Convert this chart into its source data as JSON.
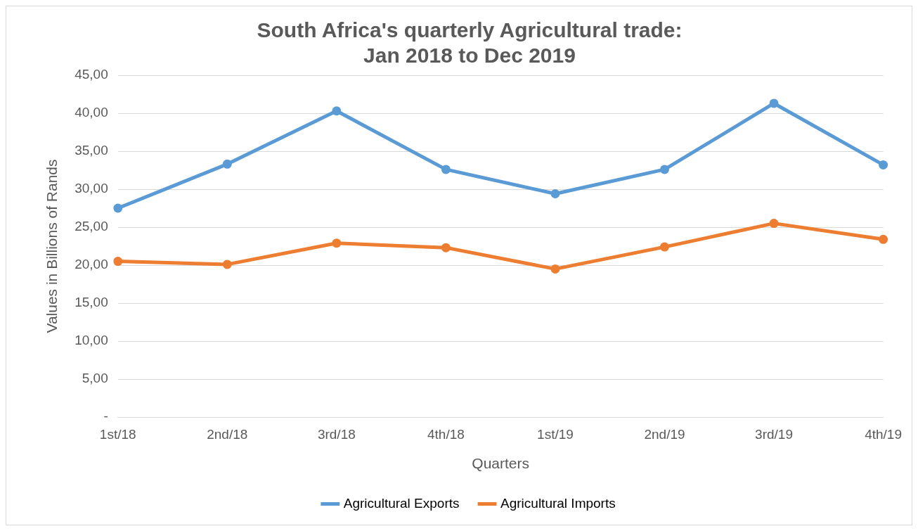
{
  "chart_data": {
    "type": "line",
    "title": [
      "South Africa's quarterly Agricultural trade:",
      "Jan 2018 to Dec 2019"
    ],
    "xlabel": "Quarters",
    "ylabel": "Values in Billions of Rands",
    "categories": [
      "1st/18",
      "2nd/18",
      "3rd/18",
      "4th/18",
      "1st/19",
      "2nd/19",
      "3rd/19",
      "4th/19"
    ],
    "series": [
      {
        "name": "Agricultural Exports",
        "color": "#5b9bd5",
        "values": [
          27.5,
          33.3,
          40.3,
          32.6,
          29.4,
          32.6,
          41.3,
          33.2
        ]
      },
      {
        "name": "Agricultural Imports",
        "color": "#ed7d31",
        "values": [
          20.5,
          20.1,
          22.9,
          22.3,
          19.5,
          22.4,
          25.5,
          23.4
        ]
      }
    ],
    "ylim": [
      0,
      45
    ],
    "yticks": [
      {
        "value": 0,
        "label": "-"
      },
      {
        "value": 5,
        "label": "5,00"
      },
      {
        "value": 10,
        "label": "10,00"
      },
      {
        "value": 15,
        "label": "15,00"
      },
      {
        "value": 20,
        "label": "20,00"
      },
      {
        "value": 25,
        "label": "25,00"
      },
      {
        "value": 30,
        "label": "30,00"
      },
      {
        "value": 35,
        "label": "35,00"
      },
      {
        "value": 40,
        "label": "40,00"
      },
      {
        "value": 45,
        "label": "45,00"
      }
    ],
    "grid": "y",
    "legend": "bottom",
    "marker": "circle",
    "line_style": "solid"
  }
}
